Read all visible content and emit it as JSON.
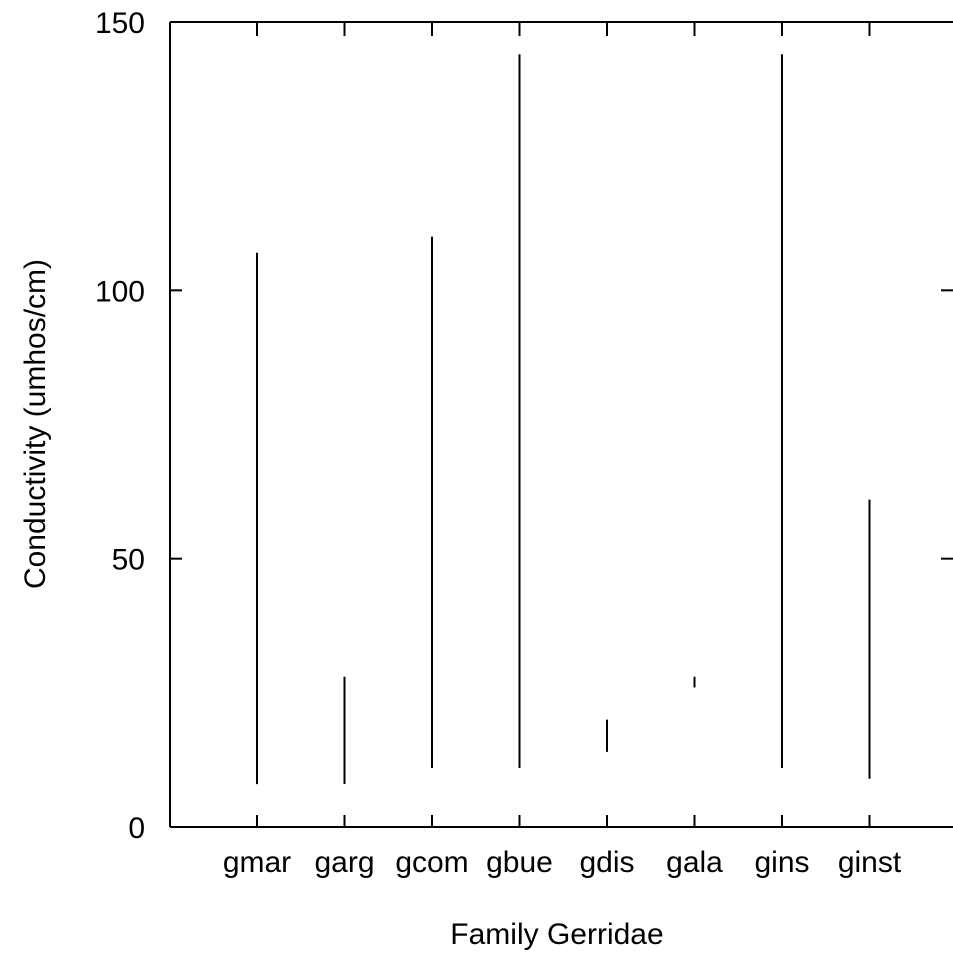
{
  "chart_data": {
    "type": "range",
    "categories": [
      "gmar",
      "garg",
      "gcom",
      "gbue",
      "gdis",
      "gala",
      "gins",
      "ginst"
    ],
    "series": [
      {
        "ranges": [
          [
            8,
            107
          ],
          [
            8,
            28
          ],
          [
            11,
            110
          ],
          [
            11,
            144
          ],
          [
            14,
            20
          ],
          [
            26,
            28
          ],
          [
            11,
            144
          ],
          [
            9,
            61
          ]
        ]
      }
    ],
    "xlabel": "Family  Gerridae",
    "ylabel": "Conductivity  (umhos/cm)",
    "ylim": [
      0,
      150
    ],
    "yticks": [
      0,
      50,
      100,
      150
    ],
    "grid": false,
    "legend": "none",
    "colors": {
      "line": "#000000",
      "background": "#ffffff"
    }
  }
}
